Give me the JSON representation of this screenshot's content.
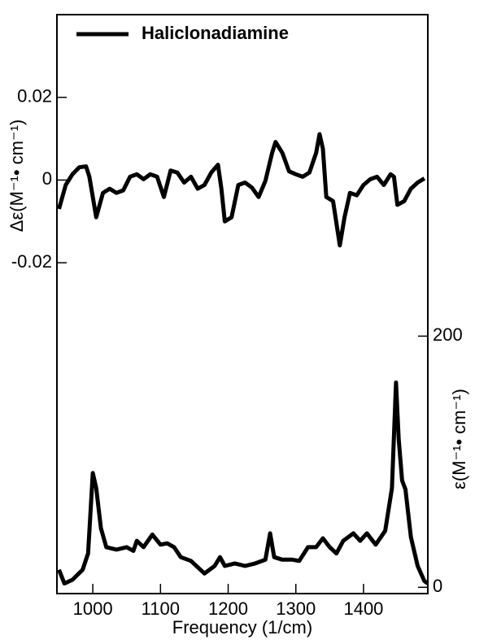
{
  "chart_data": {
    "type": "line",
    "x_label": "Frequency (1/cm)",
    "y_label": "Δε(M⁻¹• cm⁻¹)",
    "y2_label": "ε(M⁻¹• cm⁻¹)",
    "xlim": [
      947,
      1495
    ],
    "xticks": [
      1000,
      1100,
      1200,
      1300,
      1400
    ],
    "ylim": [
      -0.1,
      0.04
    ],
    "yticks": [
      -0.02,
      0,
      0.02
    ],
    "y2lim": [
      -5,
      456
    ],
    "y2ticks": [
      0,
      200
    ],
    "legend": "upper left",
    "series": [
      {
        "name": "Haliclonadiamine",
        "color": "#000000",
        "x": [
          950,
          960,
          970,
          980,
          990,
          995,
          1000,
          1005,
          1015,
          1025,
          1035,
          1045,
          1055,
          1065,
          1075,
          1085,
          1095,
          1105,
          1115,
          1125,
          1135,
          1145,
          1155,
          1165,
          1175,
          1185,
          1190,
          1195,
          1205,
          1215,
          1225,
          1235,
          1245,
          1255,
          1265,
          1270,
          1280,
          1290,
          1300,
          1310,
          1320,
          1330,
          1335,
          1340,
          1345,
          1355,
          1365,
          1372,
          1380,
          1390,
          1400,
          1410,
          1420,
          1430,
          1440,
          1445,
          1450,
          1460,
          1470,
          1480,
          1490
        ],
        "values": [
          -0.007,
          -0.0012,
          0.0014,
          0.0031,
          0.0033,
          0.0008,
          -0.0041,
          -0.009,
          -0.0031,
          -0.0021,
          -0.0031,
          -0.0025,
          0.0008,
          0.0014,
          0.0002,
          0.0014,
          0.0008,
          -0.0041,
          0.0023,
          0.0018,
          -0.0006,
          0.0008,
          -0.0021,
          -0.0012,
          0.0018,
          0.0037,
          -0.0021,
          -0.01,
          -0.009,
          -0.0012,
          -0.0006,
          -0.0018,
          -0.0041,
          -0.0002,
          0.0066,
          0.0092,
          0.0066,
          0.0021,
          0.0014,
          0.0008,
          0.0018,
          0.0066,
          0.0111,
          0.0076,
          -0.0041,
          -0.0051,
          -0.0158,
          -0.009,
          -0.0031,
          -0.0037,
          -0.0012,
          0.0002,
          0.0008,
          -0.0012,
          0.0014,
          0.0008,
          -0.006,
          -0.0051,
          -0.0021,
          -0.0006,
          0.0004
        ]
      },
      {
        "color": "#000000",
        "axis": "y2",
        "x": [
          950,
          958,
          970,
          985,
          993,
          1000,
          1005,
          1012,
          1020,
          1035,
          1050,
          1060,
          1065,
          1075,
          1088,
          1100,
          1110,
          1120,
          1130,
          1145,
          1165,
          1180,
          1188,
          1195,
          1210,
          1225,
          1240,
          1255,
          1262,
          1268,
          1280,
          1295,
          1305,
          1318,
          1330,
          1340,
          1350,
          1360,
          1370,
          1385,
          1395,
          1405,
          1418,
          1432,
          1442,
          1448,
          1452,
          1457,
          1462,
          1470,
          1480,
          1490,
          1495
        ],
        "values": [
          14,
          3,
          6,
          14,
          27,
          91,
          79,
          47,
          32,
          30,
          32,
          29,
          37,
          32,
          42,
          34,
          35,
          32,
          24,
          21,
          11,
          17,
          24,
          17,
          19,
          17,
          19,
          22,
          43,
          24,
          22,
          22,
          21,
          32,
          32,
          39,
          32,
          27,
          37,
          43,
          37,
          43,
          34,
          45,
          79,
          163,
          118,
          85,
          78,
          40,
          17,
          5,
          3
        ]
      }
    ]
  }
}
